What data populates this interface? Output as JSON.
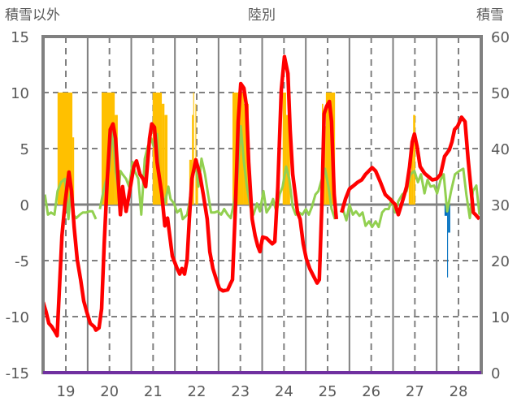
{
  "chart_data": {
    "type": "line",
    "title": "陸別",
    "ylabel_left": "積雪以外",
    "ylabel_right": "積雪",
    "xlim": [
      18.48,
      28.52
    ],
    "ylim_left": [
      -15,
      15
    ],
    "ylim_right": [
      0,
      60
    ],
    "yticks_left": [
      "15",
      "10",
      "5",
      "0",
      "-5",
      "-10",
      "-15"
    ],
    "yticks_right": [
      "60",
      "50",
      "40",
      "30",
      "20",
      "10",
      "0"
    ],
    "xticks": [
      "19",
      "20",
      "21",
      "22",
      "23",
      "24",
      "25",
      "26",
      "27",
      "28"
    ],
    "grid": true,
    "colors": {
      "red": "#ff0000",
      "green": "#92d050",
      "orange": "#ffc000",
      "blue": "#0070c0",
      "purple": "#7030a0",
      "axis": "#808080"
    },
    "series_red": [
      [
        18.48,
        -8.7
      ],
      [
        18.55,
        -9.6
      ],
      [
        18.61,
        -10.6
      ],
      [
        18.68,
        -10.9
      ],
      [
        18.76,
        -11.4
      ],
      [
        18.8,
        -11.7
      ],
      [
        18.85,
        -7.8
      ],
      [
        18.91,
        -2.8
      ],
      [
        18.98,
        0.1
      ],
      [
        19.07,
        2.9
      ],
      [
        19.13,
        1.2
      ],
      [
        19.19,
        -2.0
      ],
      [
        19.26,
        -4.9
      ],
      [
        19.34,
        -6.7
      ],
      [
        19.41,
        -8.6
      ],
      [
        19.48,
        -9.6
      ],
      [
        19.56,
        -10.6
      ],
      [
        19.65,
        -10.9
      ],
      [
        19.69,
        -11.2
      ],
      [
        19.76,
        -11.0
      ],
      [
        19.82,
        -9.3
      ],
      [
        19.88,
        -3.5
      ],
      [
        19.95,
        2.3
      ],
      [
        20.02,
        6.7
      ],
      [
        20.08,
        7.2
      ],
      [
        20.14,
        5.9
      ],
      [
        20.21,
        1.6
      ],
      [
        20.25,
        -0.9
      ],
      [
        20.3,
        1.6
      ],
      [
        20.38,
        -0.6
      ],
      [
        20.45,
        0.9
      ],
      [
        20.56,
        3.4
      ],
      [
        20.62,
        3.9
      ],
      [
        20.7,
        2.7
      ],
      [
        20.77,
        2.3
      ],
      [
        20.83,
        1.6
      ],
      [
        20.92,
        5.9
      ],
      [
        20.97,
        7.2
      ],
      [
        21.03,
        6.9
      ],
      [
        21.09,
        3.8
      ],
      [
        21.2,
        0.9
      ],
      [
        21.27,
        -1.9
      ],
      [
        21.33,
        -1.2
      ],
      [
        21.44,
        -4.6
      ],
      [
        21.55,
        -5.7
      ],
      [
        21.61,
        -6.2
      ],
      [
        21.66,
        -5.7
      ],
      [
        21.72,
        -6.2
      ],
      [
        21.78,
        -4.9
      ],
      [
        21.83,
        -1.3
      ],
      [
        21.89,
        2.3
      ],
      [
        21.98,
        4.0
      ],
      [
        22.07,
        2.7
      ],
      [
        22.15,
        0.9
      ],
      [
        22.24,
        -1.3
      ],
      [
        22.3,
        -4.2
      ],
      [
        22.37,
        -5.7
      ],
      [
        22.45,
        -6.7
      ],
      [
        22.52,
        -7.5
      ],
      [
        22.6,
        -7.7
      ],
      [
        22.71,
        -7.6
      ],
      [
        22.78,
        -7.0
      ],
      [
        22.82,
        -6.7
      ],
      [
        22.89,
        0.1
      ],
      [
        22.95,
        7.4
      ],
      [
        23.01,
        10.8
      ],
      [
        23.08,
        10.4
      ],
      [
        23.14,
        8.8
      ],
      [
        23.19,
        3.8
      ],
      [
        23.27,
        -1.3
      ],
      [
        23.34,
        -2.8
      ],
      [
        23.4,
        -3.7
      ],
      [
        23.45,
        -4.2
      ],
      [
        23.51,
        -2.9
      ],
      [
        23.6,
        -3.0
      ],
      [
        23.73,
        -3.5
      ],
      [
        23.79,
        -3.3
      ],
      [
        23.86,
        1.6
      ],
      [
        23.94,
        10.3
      ],
      [
        24.01,
        13.2
      ],
      [
        24.09,
        11.7
      ],
      [
        24.14,
        6.7
      ],
      [
        24.2,
        2.7
      ],
      [
        24.31,
        -0.7
      ],
      [
        24.37,
        -1.3
      ],
      [
        24.44,
        -3.5
      ],
      [
        24.51,
        -4.8
      ],
      [
        24.59,
        -5.7
      ],
      [
        24.68,
        -6.4
      ],
      [
        24.76,
        -7.0
      ],
      [
        24.81,
        -6.7
      ],
      [
        24.87,
        0.1
      ],
      [
        24.92,
        8.1
      ],
      [
        24.98,
        8.8
      ],
      [
        25.04,
        9.2
      ],
      [
        25.09,
        7.4
      ],
      [
        25.15,
        0.9
      ],
      [
        25.2,
        -1.3
      ],
      [
        25.26,
        null
      ],
      [
        25.32,
        -0.7
      ],
      [
        25.41,
        0.5
      ],
      [
        25.5,
        1.4
      ],
      [
        25.6,
        1.7
      ],
      [
        25.69,
        2.0
      ],
      [
        25.78,
        2.2
      ],
      [
        25.87,
        2.7
      ],
      [
        26.02,
        3.3
      ],
      [
        26.1,
        3.0
      ],
      [
        26.21,
        2.0
      ],
      [
        26.32,
        0.9
      ],
      [
        26.43,
        0.5
      ],
      [
        26.55,
        0.0
      ],
      [
        26.62,
        -0.9
      ],
      [
        26.73,
        0.5
      ],
      [
        26.81,
        1.6
      ],
      [
        26.88,
        3.4
      ],
      [
        26.94,
        5.6
      ],
      [
        26.99,
        6.3
      ],
      [
        27.05,
        5.2
      ],
      [
        27.12,
        3.4
      ],
      [
        27.22,
        2.8
      ],
      [
        27.31,
        2.5
      ],
      [
        27.4,
        2.2
      ],
      [
        27.5,
        2.3
      ],
      [
        27.59,
        2.7
      ],
      [
        27.68,
        4.3
      ],
      [
        27.79,
        4.9
      ],
      [
        27.85,
        5.6
      ],
      [
        27.91,
        6.7
      ],
      [
        27.98,
        7.0
      ],
      [
        28.07,
        7.8
      ],
      [
        28.15,
        7.4
      ],
      [
        28.22,
        4.1
      ],
      [
        28.28,
        1.6
      ],
      [
        28.34,
        -0.7
      ],
      [
        28.39,
        -0.9
      ],
      [
        28.48,
        -1.3
      ]
    ],
    "series_green": [
      [
        18.52,
        0.9
      ],
      [
        18.59,
        -0.9
      ],
      [
        18.66,
        -0.7
      ],
      [
        18.74,
        -0.9
      ],
      [
        18.81,
        1.2
      ],
      [
        18.89,
        2.0
      ],
      [
        18.98,
        2.3
      ],
      [
        19.06,
        -1.3
      ],
      [
        19.11,
        1.2
      ],
      [
        19.17,
        -0.9
      ],
      [
        19.24,
        -1.2
      ],
      [
        19.32,
        -0.9
      ],
      [
        19.39,
        -0.7
      ],
      [
        19.47,
        -0.7
      ],
      [
        19.54,
        -0.6
      ],
      [
        19.61,
        -0.6
      ],
      [
        19.69,
        -1.3
      ],
      [
        19.74,
        null
      ],
      [
        19.78,
        -0.4
      ],
      [
        19.86,
        1.2
      ],
      [
        19.91,
        2.0
      ],
      [
        19.99,
        3.0
      ],
      [
        20.04,
        5.2
      ],
      [
        20.08,
        6.7
      ],
      [
        20.14,
        3.0
      ],
      [
        20.21,
        1.2
      ],
      [
        20.25,
        3.0
      ],
      [
        20.3,
        2.7
      ],
      [
        20.38,
        2.3
      ],
      [
        20.45,
        1.6
      ],
      [
        20.53,
        3.8
      ],
      [
        20.58,
        3.0
      ],
      [
        20.66,
        2.3
      ],
      [
        20.73,
        -0.9
      ],
      [
        20.81,
        4.1
      ],
      [
        20.88,
        5.2
      ],
      [
        20.96,
        5.9
      ],
      [
        21.01,
        5.2
      ],
      [
        21.09,
        6.3
      ],
      [
        21.14,
        2.3
      ],
      [
        21.2,
        0.9
      ],
      [
        21.27,
        0.1
      ],
      [
        21.35,
        1.6
      ],
      [
        21.4,
        0.5
      ],
      [
        21.48,
        0.1
      ],
      [
        21.55,
        -0.7
      ],
      [
        21.63,
        -0.4
      ],
      [
        21.68,
        -1.3
      ],
      [
        21.78,
        -0.9
      ],
      [
        21.83,
        0.1
      ],
      [
        21.91,
        2.7
      ],
      [
        21.98,
        3.4
      ],
      [
        22.04,
        1.6
      ],
      [
        22.11,
        4.1
      ],
      [
        22.19,
        2.7
      ],
      [
        22.26,
        0.9
      ],
      [
        22.33,
        -0.7
      ],
      [
        22.41,
        -0.7
      ],
      [
        22.48,
        -0.6
      ],
      [
        22.56,
        -0.9
      ],
      [
        22.63,
        -0.4
      ],
      [
        22.71,
        -0.9
      ],
      [
        22.78,
        -1.2
      ],
      [
        22.86,
        0.3
      ],
      [
        22.93,
        2.3
      ],
      [
        23.01,
        7.0
      ],
      [
        23.08,
        3.8
      ],
      [
        23.15,
        1.6
      ],
      [
        23.23,
        -0.2
      ],
      [
        23.3,
        -0.9
      ],
      [
        23.38,
        0.1
      ],
      [
        23.45,
        -0.6
      ],
      [
        23.53,
        1.2
      ],
      [
        23.6,
        -0.7
      ],
      [
        23.68,
        -0.2
      ],
      [
        23.75,
        0.5
      ],
      [
        23.83,
        -0.7
      ],
      [
        23.9,
        0.9
      ],
      [
        23.97,
        1.6
      ],
      [
        24.05,
        3.4
      ],
      [
        24.12,
        2.3
      ],
      [
        24.2,
        -0.2
      ],
      [
        24.27,
        -0.9
      ],
      [
        24.35,
        -0.7
      ],
      [
        24.42,
        -0.9
      ],
      [
        24.5,
        -0.4
      ],
      [
        24.57,
        -0.9
      ],
      [
        24.64,
        -0.2
      ],
      [
        24.72,
        0.9
      ],
      [
        24.79,
        1.2
      ],
      [
        24.87,
        2.3
      ],
      [
        24.94,
        3.2
      ],
      [
        25.02,
        1.6
      ],
      [
        25.09,
        -0.4
      ],
      [
        25.17,
        -1.3
      ],
      [
        25.26,
        null
      ],
      [
        25.35,
        -0.4
      ],
      [
        25.43,
        -1.4
      ],
      [
        25.5,
        0.0
      ],
      [
        25.58,
        -0.9
      ],
      [
        25.65,
        -0.6
      ],
      [
        25.73,
        -1.0
      ],
      [
        25.8,
        -0.7
      ],
      [
        25.87,
        -1.9
      ],
      [
        25.95,
        -1.5
      ],
      [
        26.02,
        -2.0
      ],
      [
        26.1,
        -1.5
      ],
      [
        26.17,
        -2.0
      ],
      [
        26.25,
        -0.7
      ],
      [
        26.32,
        -0.4
      ],
      [
        26.4,
        -0.4
      ],
      [
        26.47,
        0.5
      ],
      [
        26.55,
        -0.7
      ],
      [
        26.62,
        0.3
      ],
      [
        26.71,
        0.9
      ],
      [
        26.81,
        1.2
      ],
      [
        26.9,
        2.7
      ],
      [
        26.99,
        3.0
      ],
      [
        27.07,
        2.0
      ],
      [
        27.14,
        2.7
      ],
      [
        27.22,
        1.0
      ],
      [
        27.29,
        2.2
      ],
      [
        27.36,
        1.6
      ],
      [
        27.44,
        1.7
      ],
      [
        27.51,
        1.0
      ],
      [
        27.59,
        2.2
      ],
      [
        27.66,
        2.7
      ],
      [
        27.74,
        -0.6
      ],
      [
        27.83,
        1.2
      ],
      [
        27.92,
        2.7
      ],
      [
        28.02,
        3.0
      ],
      [
        28.11,
        3.2
      ],
      [
        28.18,
        0.9
      ],
      [
        28.26,
        -1.2
      ],
      [
        28.33,
        1.2
      ],
      [
        28.41,
        1.7
      ],
      [
        28.48,
        -0.9
      ]
    ],
    "bars_orange": [
      [
        18.81,
        19.15,
        10
      ],
      [
        19.15,
        19.19,
        6
      ],
      [
        19.82,
        20.12,
        10
      ],
      [
        20.12,
        20.19,
        8
      ],
      [
        20.99,
        21.2,
        10
      ],
      [
        21.2,
        21.26,
        9
      ],
      [
        21.26,
        21.33,
        8
      ],
      [
        21.83,
        21.89,
        4
      ],
      [
        21.89,
        21.92,
        8
      ],
      [
        21.92,
        21.94,
        10
      ],
      [
        21.97,
        21.99,
        9
      ],
      [
        21.99,
        22.03,
        4
      ],
      [
        22.82,
        23.08,
        10
      ],
      [
        23.08,
        23.19,
        9
      ],
      [
        23.97,
        24.05,
        10
      ],
      [
        24.05,
        24.14,
        8
      ],
      [
        24.87,
        24.9,
        9
      ],
      [
        24.9,
        24.96,
        7
      ],
      [
        24.96,
        25.17,
        10
      ],
      [
        26.86,
        26.92,
        3
      ],
      [
        26.92,
        26.96,
        6
      ],
      [
        26.96,
        27.01,
        8
      ]
    ],
    "bars_blue": [
      [
        27.68,
        27.74,
        -1
      ],
      [
        27.74,
        27.76,
        -6.5
      ],
      [
        27.76,
        27.81,
        -2.5
      ]
    ],
    "series_purple_right": 0
  }
}
